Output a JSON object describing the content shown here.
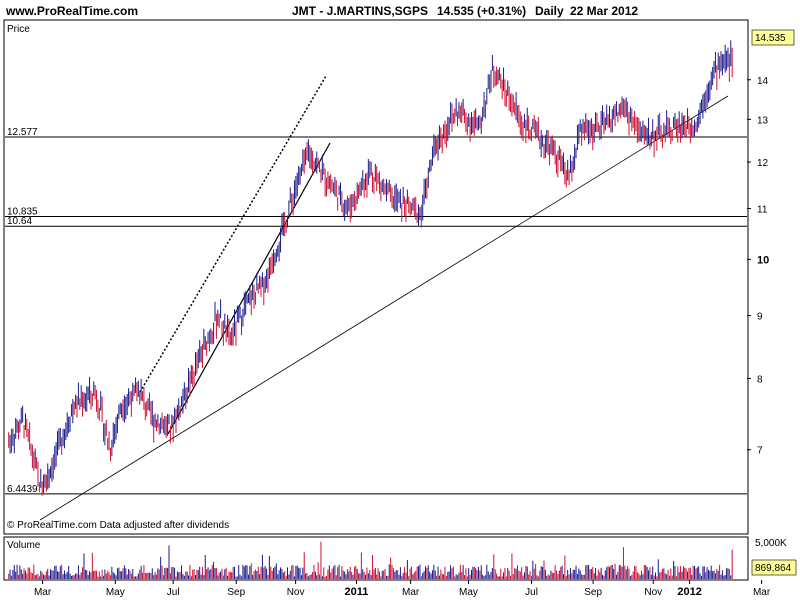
{
  "header": {
    "site": "www.ProRealTime.com",
    "instrument": "JMT - J.MARTINS,SGPS",
    "last": "14.535 (+0.31%)",
    "period": "Daily",
    "date": "22 Mar 2012"
  },
  "price_panel": {
    "label": "Price",
    "last_badge": "14.535",
    "footer": "© ProRealTime.com  Data adjusted after dividends"
  },
  "volume_panel": {
    "label": "Volume",
    "max_label": "5,000K",
    "last_badge": "869,864"
  },
  "colors": {
    "up": "#1a1a8c",
    "down": "#cc1133",
    "badge": "#ffff99"
  },
  "chart_data": {
    "type": "ohlc",
    "scale": "log",
    "ylim": [
      6.0,
      15.6
    ],
    "y_ticks": [
      {
        "value": 7,
        "label": "7"
      },
      {
        "value": 8,
        "label": "8"
      },
      {
        "value": 9,
        "label": "9"
      },
      {
        "value": 10,
        "label": "10",
        "bold": true
      },
      {
        "value": 11,
        "label": "11"
      },
      {
        "value": 12,
        "label": "12"
      },
      {
        "value": 13,
        "label": "13"
      },
      {
        "value": 14,
        "label": "14"
      }
    ],
    "x_labels": [
      {
        "label": "Mar",
        "pos": 0.052
      },
      {
        "label": "May",
        "pos": 0.15
      },
      {
        "label": "Jul",
        "pos": 0.228
      },
      {
        "label": "Sep",
        "pos": 0.313
      },
      {
        "label": "Nov",
        "pos": 0.393
      },
      {
        "label": "2011",
        "pos": 0.475,
        "bold": true
      },
      {
        "label": "Mar",
        "pos": 0.548
      },
      {
        "label": "May",
        "pos": 0.626
      },
      {
        "label": "Jul",
        "pos": 0.711
      },
      {
        "label": "Sep",
        "pos": 0.794
      },
      {
        "label": "Nov",
        "pos": 0.875
      },
      {
        "label": "2012",
        "pos": 0.924,
        "bold": true
      },
      {
        "label": "Mar",
        "pos": 1.021
      }
    ],
    "horizontal_levels": [
      {
        "value": 12.577,
        "label": "12.577"
      },
      {
        "value": 10.835,
        "label": "10.835"
      },
      {
        "value": 10.64,
        "label": "10.64"
      },
      {
        "value": 6.4439,
        "label": "6.4439"
      }
    ],
    "volume_max": 5000,
    "last_close": 14.535,
    "last_volume": 869.864
  }
}
